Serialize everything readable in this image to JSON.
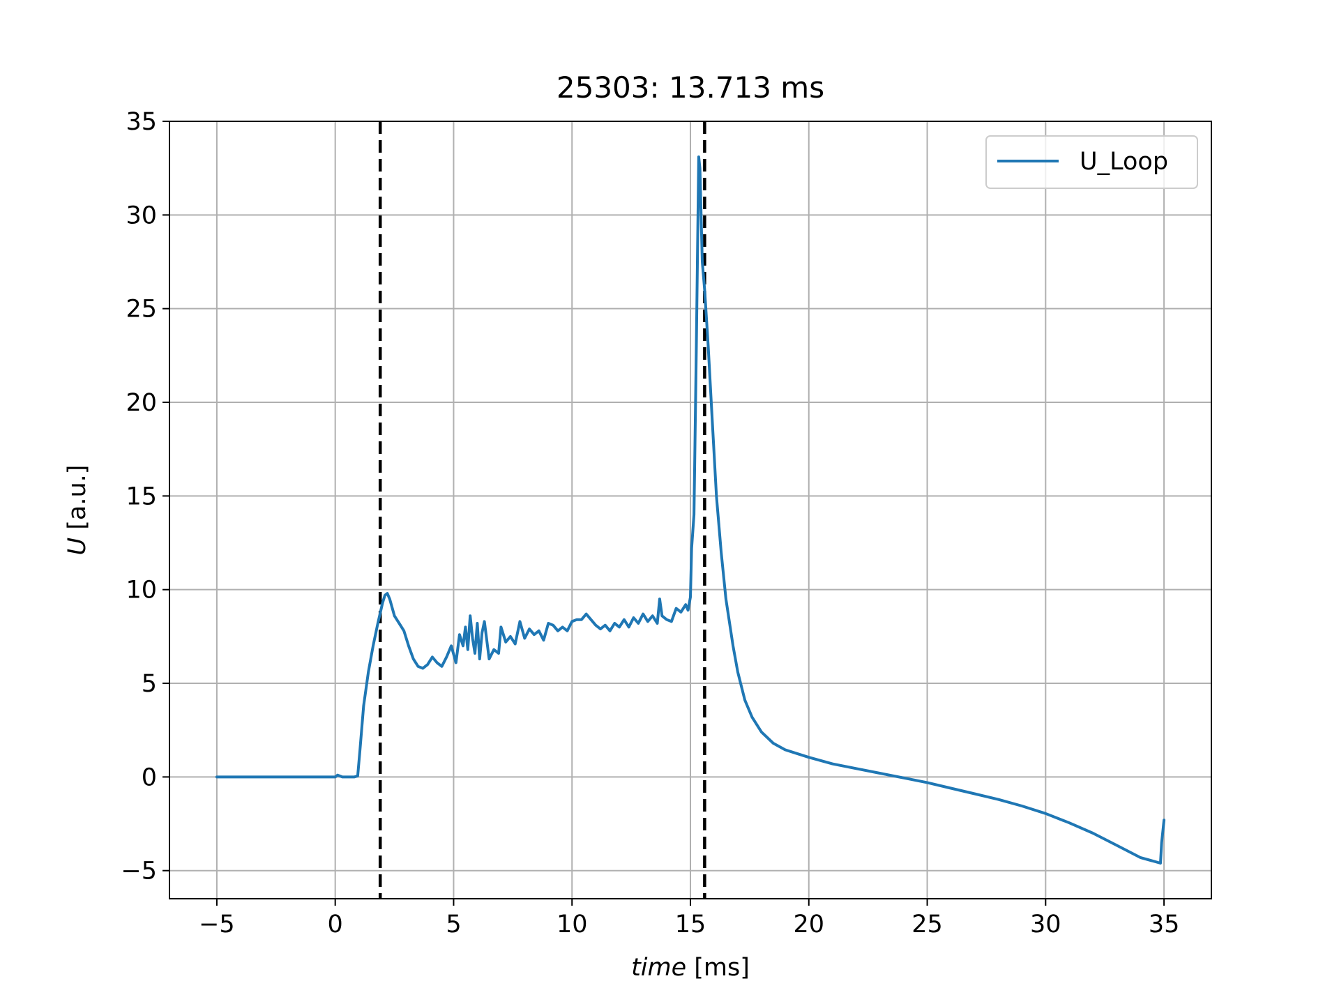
{
  "chart_data": {
    "type": "line",
    "title": "25303: 13.713 ms",
    "xlabel_italic": "time",
    "xlabel_unit": " [ms]",
    "ylabel_italic": "U",
    "ylabel_unit": " [a.u.]",
    "xlim": [
      -7,
      37
    ],
    "ylim": [
      -6.5,
      35
    ],
    "xticks": [
      -5,
      0,
      5,
      10,
      15,
      20,
      25,
      30,
      35
    ],
    "xtick_labels": [
      "−5",
      "0",
      "5",
      "10",
      "15",
      "20",
      "25",
      "30",
      "35"
    ],
    "yticks": [
      -5,
      0,
      5,
      10,
      15,
      20,
      25,
      30,
      35
    ],
    "ytick_labels": [
      "−5",
      "0",
      "5",
      "10",
      "15",
      "20",
      "25",
      "30",
      "35"
    ],
    "grid": true,
    "legend_position": "top-right",
    "vlines": [
      {
        "x": 1.9,
        "style": "dashed",
        "color": "#000000"
      },
      {
        "x": 15.6,
        "style": "dashed",
        "color": "#000000"
      }
    ],
    "series": [
      {
        "name": "U_Loop",
        "color": "#1f77b4",
        "x": [
          -5,
          -2,
          0,
          0.1,
          0.3,
          0.8,
          0.95,
          1.05,
          1.2,
          1.4,
          1.6,
          1.8,
          2.0,
          2.1,
          2.2,
          2.3,
          2.5,
          2.7,
          2.9,
          3.1,
          3.3,
          3.5,
          3.7,
          3.9,
          4.1,
          4.3,
          4.5,
          4.7,
          4.9,
          5.1,
          5.25,
          5.4,
          5.5,
          5.6,
          5.7,
          5.8,
          5.9,
          6.0,
          6.1,
          6.2,
          6.3,
          6.5,
          6.7,
          6.9,
          7.0,
          7.2,
          7.4,
          7.6,
          7.8,
          8.0,
          8.2,
          8.4,
          8.6,
          8.8,
          9.0,
          9.2,
          9.4,
          9.6,
          9.8,
          10.0,
          10.2,
          10.4,
          10.6,
          10.8,
          11.0,
          11.2,
          11.4,
          11.6,
          11.8,
          12.0,
          12.2,
          12.4,
          12.6,
          12.8,
          13.0,
          13.2,
          13.4,
          13.6,
          13.7,
          13.8,
          14.0,
          14.2,
          14.4,
          14.6,
          14.8,
          14.9,
          15.0,
          15.05,
          15.15,
          15.25,
          15.35,
          15.4,
          15.5,
          15.6,
          15.75,
          15.9,
          16.1,
          16.3,
          16.5,
          16.8,
          17.0,
          17.3,
          17.6,
          18.0,
          18.5,
          19.0,
          19.5,
          20.0,
          21.0,
          22.0,
          23.0,
          24.0,
          25.0,
          26.0,
          27.0,
          28.0,
          29.0,
          30.0,
          31.0,
          32.0,
          33.0,
          34.0,
          34.85,
          34.9,
          35.0
        ],
        "y": [
          0,
          0,
          0,
          0.1,
          0,
          0,
          0.05,
          1.5,
          3.8,
          5.6,
          7.0,
          8.2,
          9.3,
          9.7,
          9.8,
          9.5,
          8.6,
          8.2,
          7.8,
          7.0,
          6.3,
          5.9,
          5.8,
          6.0,
          6.4,
          6.1,
          5.9,
          6.4,
          7.0,
          6.1,
          7.6,
          7.0,
          8.0,
          6.8,
          8.6,
          7.4,
          6.6,
          8.2,
          6.3,
          7.7,
          8.3,
          6.3,
          6.8,
          6.6,
          8.0,
          7.2,
          7.5,
          7.1,
          8.3,
          7.4,
          7.9,
          7.6,
          7.8,
          7.3,
          8.2,
          8.1,
          7.8,
          8.0,
          7.8,
          8.3,
          8.4,
          8.4,
          8.7,
          8.4,
          8.1,
          7.9,
          8.1,
          7.8,
          8.2,
          8.0,
          8.4,
          8.0,
          8.5,
          8.2,
          8.7,
          8.3,
          8.6,
          8.2,
          9.5,
          8.6,
          8.4,
          8.3,
          9.0,
          8.8,
          9.2,
          8.9,
          9.6,
          12.2,
          14.0,
          23.0,
          33.1,
          32.5,
          27.5,
          26.0,
          23.0,
          19.5,
          15.0,
          12.0,
          9.5,
          7.0,
          5.6,
          4.1,
          3.2,
          2.4,
          1.8,
          1.45,
          1.25,
          1.05,
          0.7,
          0.45,
          0.2,
          -0.05,
          -0.3,
          -0.6,
          -0.9,
          -1.2,
          -1.55,
          -1.95,
          -2.45,
          -3.0,
          -3.65,
          -4.3,
          -4.6,
          -3.5,
          -2.3
        ]
      }
    ]
  }
}
